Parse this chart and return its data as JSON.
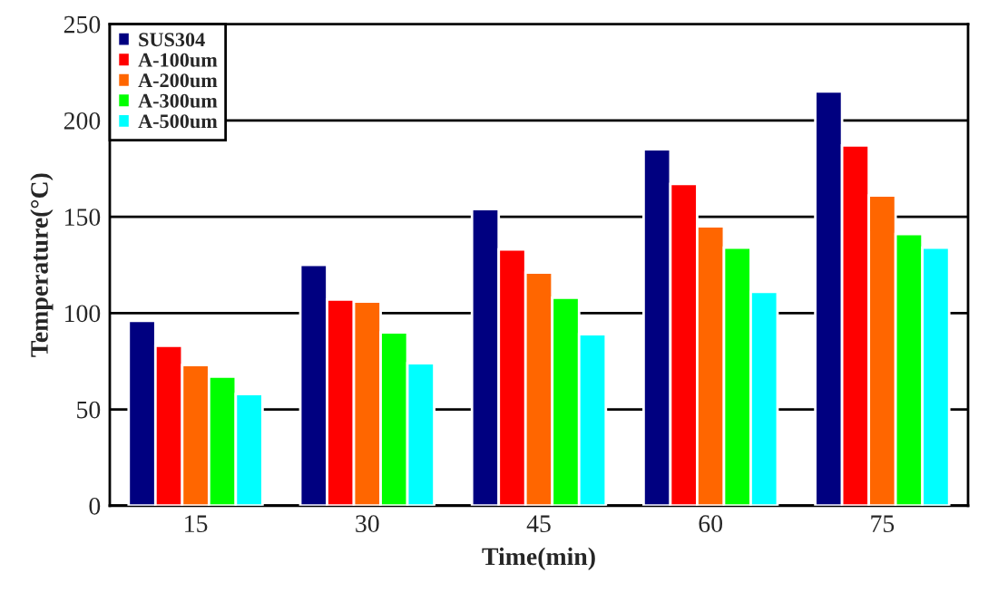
{
  "chart_data": {
    "type": "bar",
    "xlabel": "Time(min)",
    "ylabel": "Temperature(°C)",
    "categories": [
      "15",
      "30",
      "45",
      "60",
      "75"
    ],
    "series": [
      {
        "name": "SUS304",
        "color": "#000080",
        "values": [
          96,
          125,
          154,
          185,
          215
        ]
      },
      {
        "name": "A-100um",
        "color": "#ff0000",
        "values": [
          83,
          107,
          133,
          167,
          187
        ]
      },
      {
        "name": "A-200um",
        "color": "#ff6600",
        "values": [
          73,
          106,
          121,
          145,
          161
        ]
      },
      {
        "name": "A-300um",
        "color": "#00ff00",
        "values": [
          67,
          90,
          108,
          134,
          141
        ]
      },
      {
        "name": "A-500um",
        "color": "#00ffff",
        "values": [
          58,
          74,
          89,
          111,
          134
        ]
      }
    ],
    "ylim": [
      0,
      250
    ],
    "yticks": [
      0,
      50,
      100,
      150,
      200,
      250
    ],
    "grid": "y",
    "legend": "top left"
  }
}
